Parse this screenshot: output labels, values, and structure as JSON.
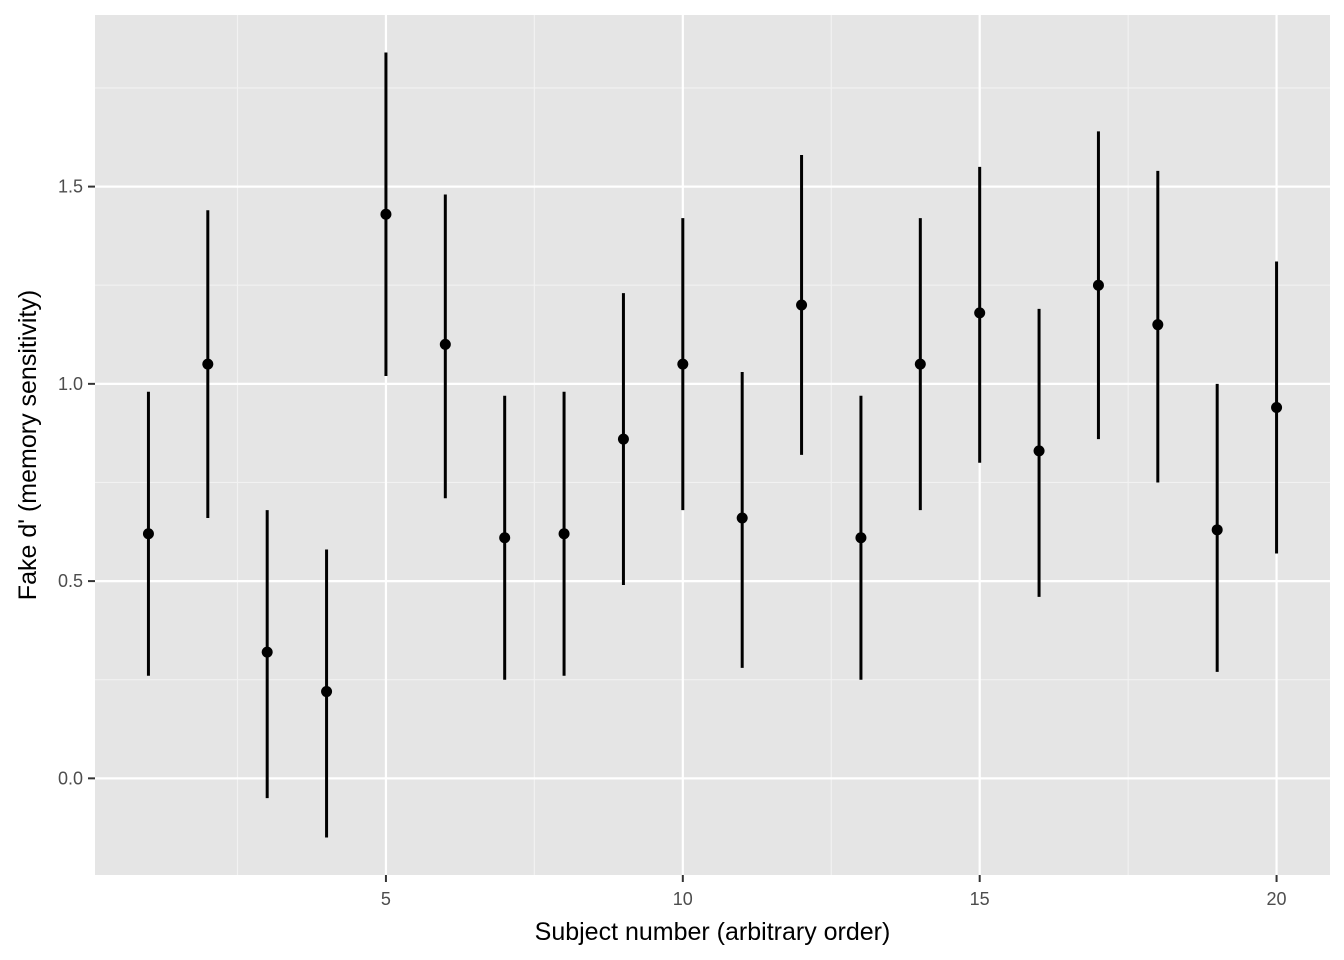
{
  "chart_data": {
    "type": "scatter",
    "subtype": "pointrange",
    "title": "",
    "xlabel": "Subject number (arbitrary order)",
    "ylabel": "Fake d' (memory sensitivity)",
    "xlim": [
      0.1,
      20.9
    ],
    "ylim": [
      -0.245,
      1.935
    ],
    "x_ticks": [
      5,
      10,
      15,
      20
    ],
    "x_tick_labels": [
      "5",
      "10",
      "15",
      "20"
    ],
    "x_minor_ticks": [
      2.5,
      7.5,
      12.5,
      17.5
    ],
    "y_ticks": [
      0.0,
      0.5,
      1.0,
      1.5
    ],
    "y_tick_labels": [
      "0.0",
      "0.5",
      "1.0",
      "1.5"
    ],
    "y_minor_ticks": [
      0.25,
      0.75,
      1.25,
      1.75
    ],
    "grid": true,
    "legend": "none",
    "colors": {
      "panel_background": "#e5e5e5",
      "major_grid": "#ffffff",
      "minor_grid": "#f2f2f2",
      "point": "#000000",
      "tick_label": "#4d4d4d"
    },
    "points": [
      {
        "x": 1,
        "y": 0.62,
        "ymin": 0.26,
        "ymax": 0.98
      },
      {
        "x": 2,
        "y": 1.05,
        "ymin": 0.66,
        "ymax": 1.44
      },
      {
        "x": 3,
        "y": 0.32,
        "ymin": -0.05,
        "ymax": 0.68
      },
      {
        "x": 4,
        "y": 0.22,
        "ymin": -0.15,
        "ymax": 0.58
      },
      {
        "x": 5,
        "y": 1.43,
        "ymin": 1.02,
        "ymax": 1.84
      },
      {
        "x": 6,
        "y": 1.1,
        "ymin": 0.71,
        "ymax": 1.48
      },
      {
        "x": 7,
        "y": 0.61,
        "ymin": 0.25,
        "ymax": 0.97
      },
      {
        "x": 8,
        "y": 0.62,
        "ymin": 0.26,
        "ymax": 0.98
      },
      {
        "x": 9,
        "y": 0.86,
        "ymin": 0.49,
        "ymax": 1.23
      },
      {
        "x": 10,
        "y": 1.05,
        "ymin": 0.68,
        "ymax": 1.42
      },
      {
        "x": 11,
        "y": 0.66,
        "ymin": 0.28,
        "ymax": 1.03
      },
      {
        "x": 12,
        "y": 1.2,
        "ymin": 0.82,
        "ymax": 1.58
      },
      {
        "x": 13,
        "y": 0.61,
        "ymin": 0.25,
        "ymax": 0.97
      },
      {
        "x": 14,
        "y": 1.05,
        "ymin": 0.68,
        "ymax": 1.42
      },
      {
        "x": 15,
        "y": 1.18,
        "ymin": 0.8,
        "ymax": 1.55
      },
      {
        "x": 16,
        "y": 0.83,
        "ymin": 0.46,
        "ymax": 1.19
      },
      {
        "x": 17,
        "y": 1.25,
        "ymin": 0.86,
        "ymax": 1.64
      },
      {
        "x": 18,
        "y": 1.15,
        "ymin": 0.75,
        "ymax": 1.54
      },
      {
        "x": 19,
        "y": 0.63,
        "ymin": 0.27,
        "ymax": 1.0
      },
      {
        "x": 20,
        "y": 0.94,
        "ymin": 0.57,
        "ymax": 1.31
      }
    ]
  }
}
